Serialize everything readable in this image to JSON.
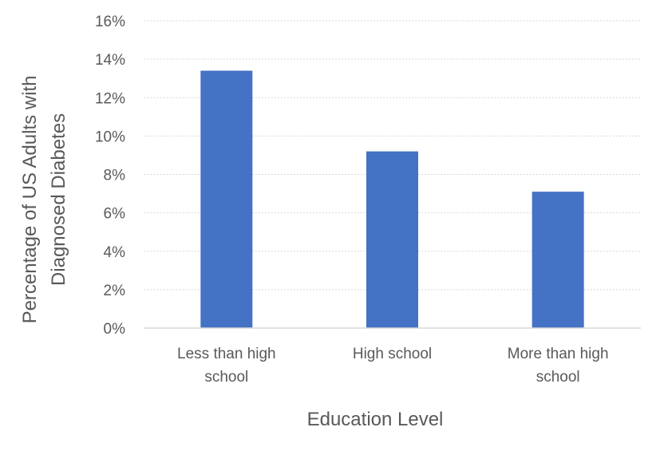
{
  "chart_data": {
    "type": "bar",
    "title": "",
    "xlabel": "Education Level",
    "ylabel": "Percentage of US Adults with Diagnosed Diabetes",
    "ylabel_lines": [
      "Percentage of US Adults with",
      "Diagnosed Diabetes"
    ],
    "categories": [
      "Less than high school",
      "High school",
      "More than high school"
    ],
    "category_lines": [
      [
        "Less than high",
        "school"
      ],
      [
        "High school"
      ],
      [
        "More than high",
        "school"
      ]
    ],
    "values": [
      0.134,
      0.092,
      0.071
    ],
    "ylim": [
      0,
      0.16
    ],
    "yticks": [
      0,
      0.02,
      0.04,
      0.06,
      0.08,
      0.1,
      0.12,
      0.14,
      0.16
    ],
    "ytick_labels": [
      "0%",
      "2%",
      "4%",
      "6%",
      "8%",
      "10%",
      "12%",
      "14%",
      "16%"
    ],
    "grid": true,
    "legend": "none",
    "colors": {
      "bar": "#4472C4",
      "grid": "#D9D9D9",
      "axis": "#D9D9D9",
      "text": "#595959"
    }
  }
}
